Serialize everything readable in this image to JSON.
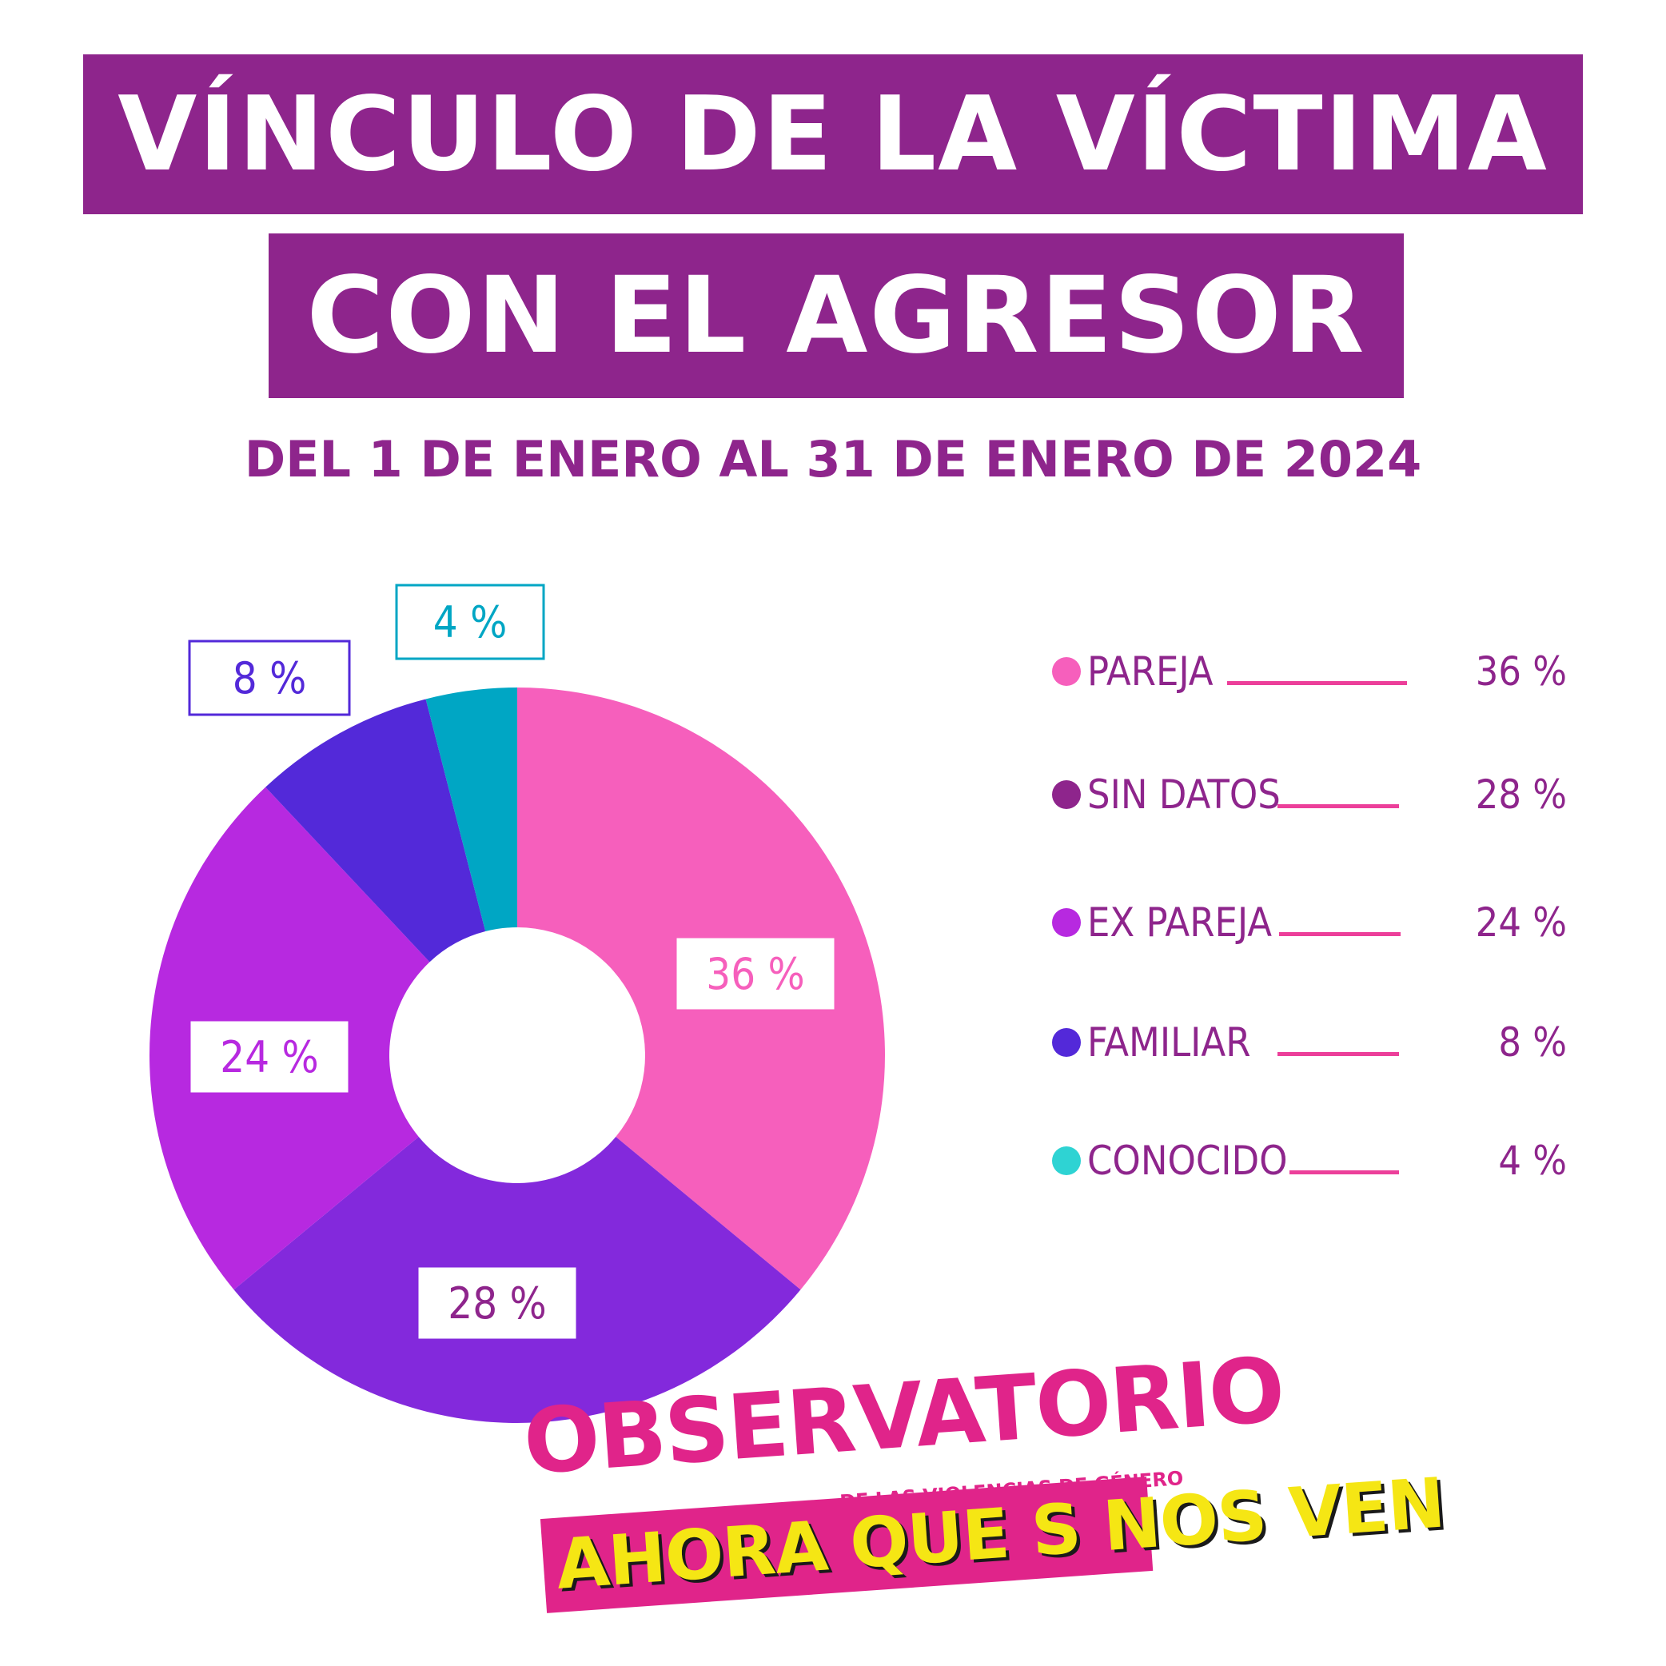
{
  "header": {
    "title_line1": "VÍNCULO DE LA VÍCTIMA",
    "title_line2": "CON EL AGRESOR",
    "subtitle": "DEL 1 DE ENERO AL 31 DE ENERO DE 2024"
  },
  "chart_data": {
    "type": "pie",
    "variant": "donut",
    "categories": [
      "PAREJA",
      "SIN DATOS",
      "EX PAREJA",
      "FAMILIAR",
      "CONOCIDO"
    ],
    "values": [
      36,
      28,
      24,
      8,
      4
    ],
    "unit": "%",
    "data_labels": [
      "36 %",
      "28 %",
      "24 %",
      "8 %",
      "4 %"
    ],
    "colors": [
      "#f65fbc",
      "#8329dc",
      "#b729e0",
      "#5329d9",
      "#00a6c4"
    ],
    "legend_placement": "right"
  },
  "legend": {
    "items": [
      {
        "label": "PAREJA",
        "value": "36 %",
        "dot_color": "#f65fbc"
      },
      {
        "label": "SIN DATOS",
        "value": "28 %",
        "dot_color": "#8e258c"
      },
      {
        "label": "EX PAREJA",
        "value": "24 %",
        "dot_color": "#b729e0"
      },
      {
        "label": "FAMILIAR",
        "value": "8 %",
        "dot_color": "#5329d9"
      },
      {
        "label": "CONOCIDO",
        "value": "4 %",
        "dot_color": "#2ed3d3"
      }
    ],
    "line_color": "#ec3f9a"
  },
  "logo": {
    "main": "OBSERVATORIO",
    "sub": "DE LAS VIOLENCIAS DE GÉNERO",
    "slogan": "AHORA QUE S NOS VEN"
  }
}
